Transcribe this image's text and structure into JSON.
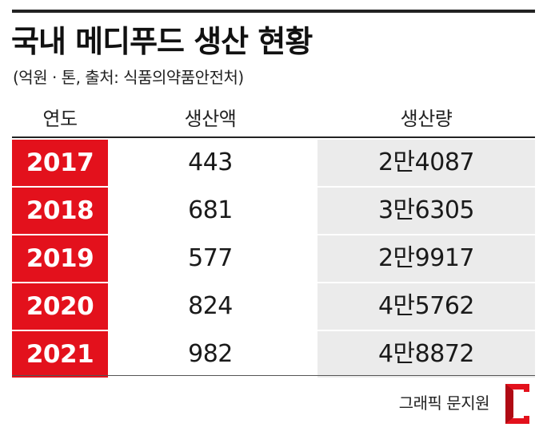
{
  "title": "국내 메디푸드 생산 현황",
  "subtitle": "(억원 · 톤, 출처: 식품의약품안전처)",
  "credit": "그래픽 문지원",
  "colors": {
    "accent": "#e3111c",
    "shade": "#ebebeb",
    "rule": "#222222"
  },
  "chart_data": {
    "type": "table",
    "columns": [
      "연도",
      "생산액",
      "생산량"
    ],
    "rows": [
      {
        "year": "2017",
        "value": "443",
        "qty": "2만4087"
      },
      {
        "year": "2018",
        "value": "681",
        "qty": "3만6305"
      },
      {
        "year": "2019",
        "value": "577",
        "qty": "2만9917"
      },
      {
        "year": "2020",
        "value": "824",
        "qty": "4만5762"
      },
      {
        "year": "2021",
        "value": "982",
        "qty": "4만8872"
      }
    ]
  },
  "logo_icon": "red-bracket-logo-icon"
}
